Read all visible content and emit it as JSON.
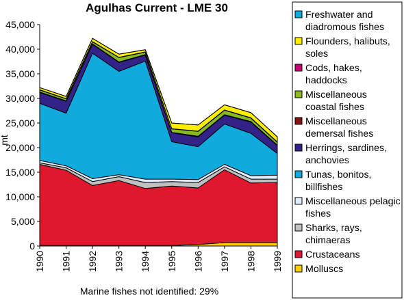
{
  "chart_data": {
    "type": "area",
    "stacked": true,
    "title": "Agulhas Current - LME 30",
    "ylabel": "mt",
    "xlabel": "",
    "ylim": [
      0,
      45000
    ],
    "yticks": [
      0,
      5000,
      10000,
      15000,
      20000,
      25000,
      30000,
      35000,
      40000,
      45000
    ],
    "ytick_labels": [
      "0",
      "5,000",
      "10,000",
      "15,000",
      "20,000",
      "25,000",
      "30,000",
      "35,000",
      "40,000",
      "45,000"
    ],
    "x": [
      "1990",
      "1991",
      "1992",
      "1993",
      "1994",
      "1995",
      "1996",
      "1997",
      "1998",
      "1999"
    ],
    "grid": false,
    "legend_placement": "right",
    "series": [
      {
        "name": "Molluscs",
        "color": "#ffcc00",
        "values": [
          100,
          100,
          100,
          100,
          100,
          100,
          300,
          700,
          700,
          700
        ]
      },
      {
        "name": "Crustaceans",
        "color": "#e0182d",
        "values": [
          16500,
          15300,
          12200,
          13200,
          11600,
          12100,
          11500,
          14800,
          12100,
          12200
        ]
      },
      {
        "name": "Sharks, rays, chimaeras",
        "color": "#c0c0c0",
        "values": [
          300,
          500,
          800,
          800,
          1200,
          900,
          1100,
          600,
          800,
          700
        ]
      },
      {
        "name": "Miscellaneous pelagic fishes",
        "color": "#ddeeff",
        "values": [
          500,
          400,
          600,
          400,
          700,
          500,
          600,
          500,
          700,
          800
        ]
      },
      {
        "name": "Tunas, bonitos, billfishes",
        "color": "#11aadd",
        "values": [
          11600,
          10700,
          25500,
          21000,
          24000,
          7600,
          6700,
          8200,
          8600,
          4400
        ]
      },
      {
        "name": "Herrings, sardines, anchovies",
        "color": "#332288",
        "values": [
          2200,
          2400,
          1800,
          1800,
          1200,
          1800,
          2000,
          1800,
          2300,
          1600
        ]
      },
      {
        "name": "Miscellaneous demersal fishes",
        "color": "#881111",
        "values": [
          100,
          100,
          100,
          100,
          100,
          100,
          100,
          100,
          100,
          100
        ]
      },
      {
        "name": "Miscellaneous coastal fishes",
        "color": "#88bb22",
        "values": [
          400,
          400,
          400,
          900,
          500,
          700,
          1000,
          900,
          700,
          600
        ]
      },
      {
        "name": "Cods, hakes, haddocks",
        "color": "#cc0077",
        "values": [
          50,
          50,
          50,
          50,
          50,
          50,
          50,
          50,
          50,
          50
        ]
      },
      {
        "name": "Flounders, halibuts, soles",
        "color": "#ffee00",
        "values": [
          450,
          450,
          650,
          650,
          450,
          1150,
          1250,
          1050,
          1050,
          1050
        ]
      },
      {
        "name": "Freshwater and diadromous fishes",
        "color": "#11aadd",
        "values": [
          0,
          0,
          0,
          0,
          0,
          0,
          0,
          0,
          0,
          0
        ]
      }
    ],
    "legend_entries": [
      {
        "label": "Freshwater and diadromous fishes",
        "lines": [
          "Freshwater and",
          "diadromous fishes"
        ],
        "color": "#11aadd"
      },
      {
        "label": "Flounders, halibuts, soles",
        "lines": [
          "Flounders, halibuts,",
          "soles"
        ],
        "color": "#ffee00"
      },
      {
        "label": "Cods, hakes, haddocks",
        "lines": [
          "Cods, hakes,",
          "haddocks"
        ],
        "color": "#cc0077"
      },
      {
        "label": "Miscellaneous coastal fishes",
        "lines": [
          "Miscellaneous",
          "coastal fishes"
        ],
        "color": "#88bb22"
      },
      {
        "label": "Miscellaneous demersal fishes",
        "lines": [
          "Miscellaneous",
          "demersal fishes"
        ],
        "color": "#881111"
      },
      {
        "label": "Herrings, sardines, anchovies",
        "lines": [
          "Herrings, sardines,",
          "anchovies"
        ],
        "color": "#332288"
      },
      {
        "label": "Tunas, bonitos, billfishes",
        "lines": [
          "Tunas, bonitos,",
          "billfishes"
        ],
        "color": "#11aadd"
      },
      {
        "label": "Miscellaneous pelagic fishes",
        "lines": [
          "Miscellaneous pelagic",
          "fishes"
        ],
        "color": "#ddeeff"
      },
      {
        "label": "Sharks, rays, chimaeras",
        "lines": [
          "Sharks, rays,",
          "chimaeras"
        ],
        "color": "#c0c0c0"
      },
      {
        "label": "Crustaceans",
        "lines": [
          "Crustaceans"
        ],
        "color": "#e0182d"
      },
      {
        "label": "Molluscs",
        "lines": [
          "Molluscs"
        ],
        "color": "#ffcc00"
      }
    ],
    "footnote": "Marine fishes not identified: 29%"
  }
}
